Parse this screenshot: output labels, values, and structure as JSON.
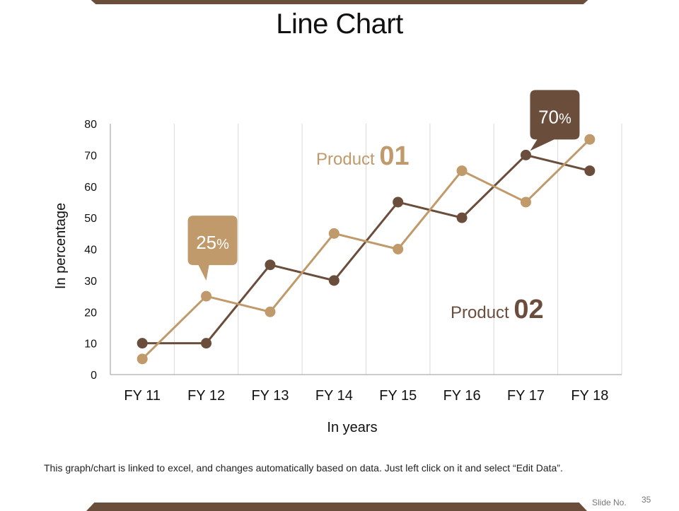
{
  "slide": {
    "title": "Line Chart",
    "footer_note": "This graph/chart is linked to excel, and changes automatically based on data. Just left click on it and select “Edit Data”.",
    "slide_label": "Slide No.",
    "slide_number": "35"
  },
  "colors": {
    "product_01": "#c09a6b",
    "product_02": "#6b4d3c",
    "bar": "#6b4d3c",
    "grid": "#d9d9d9"
  },
  "chart_data": {
    "type": "line",
    "title": "",
    "xlabel": "In years",
    "ylabel": "In percentage",
    "categories": [
      "FY 11",
      "FY 12",
      "FY 13",
      "FY 14",
      "FY 15",
      "FY 16",
      "FY 17",
      "FY 18"
    ],
    "ylim": [
      0,
      80
    ],
    "yticks": [
      0,
      10,
      20,
      30,
      40,
      50,
      60,
      70,
      80
    ],
    "grid": "vertical",
    "series": [
      {
        "name": "Product 01",
        "values": [
          5,
          25,
          20,
          45,
          40,
          65,
          55,
          75
        ]
      },
      {
        "name": "Product 02",
        "values": [
          10,
          10,
          35,
          30,
          55,
          50,
          70,
          65
        ]
      }
    ],
    "series_labels": [
      {
        "text": "Product",
        "number": "01"
      },
      {
        "text": "Product",
        "number": "02"
      }
    ],
    "callouts": [
      {
        "series": 0,
        "index": 1,
        "value": "25",
        "unit": "%"
      },
      {
        "series": 1,
        "index": 6,
        "value": "70",
        "unit": "%"
      }
    ]
  }
}
